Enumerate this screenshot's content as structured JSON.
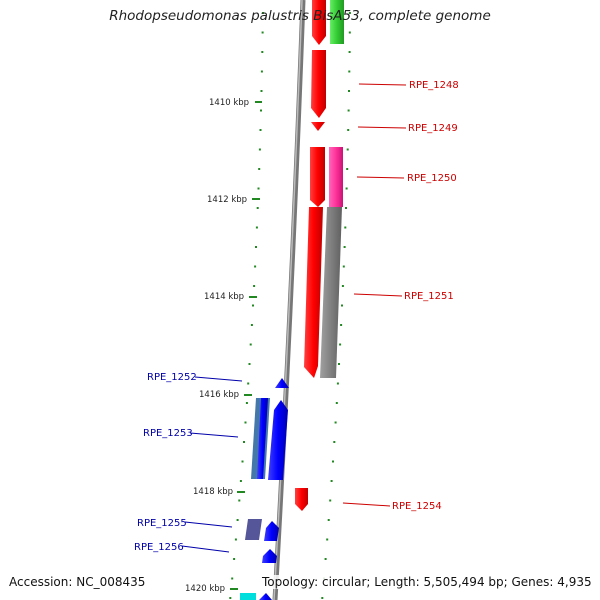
{
  "map": {
    "title": "Rhodopseudomonas palustris BisA53, complete genome",
    "accession": "Accession: NC_008435",
    "topology": "Topology: circular; Length: 5,505,494 bp; Genes: 4,935"
  },
  "scale": {
    "ticks": [
      "1410 kbp",
      "1412 kbp",
      "1414 kbp",
      "1416 kbp",
      "1418 kbp",
      "1420 kbp"
    ]
  },
  "genes": {
    "forward": [
      "RPE_1248",
      "RPE_1249",
      "RPE_1250",
      "RPE_1251",
      "RPE_1254"
    ],
    "reverse": [
      "RPE_1252",
      "RPE_1253",
      "RPE_1255",
      "RPE_1256"
    ]
  },
  "colors": {
    "forward_gene": "#ff0000",
    "forward_label": "#cc0000",
    "reverse_gene": "#0000ff",
    "reverse_label": "#0000aa",
    "cds_green": "#33cc33",
    "cds_magenta": "#ff3399",
    "cds_gray": "#808080",
    "cds_steelblue": "#4477aa",
    "cds_slate": "#555599",
    "cds_cyan": "#00dddd",
    "backbone": "#888888",
    "tick": "#228822"
  }
}
